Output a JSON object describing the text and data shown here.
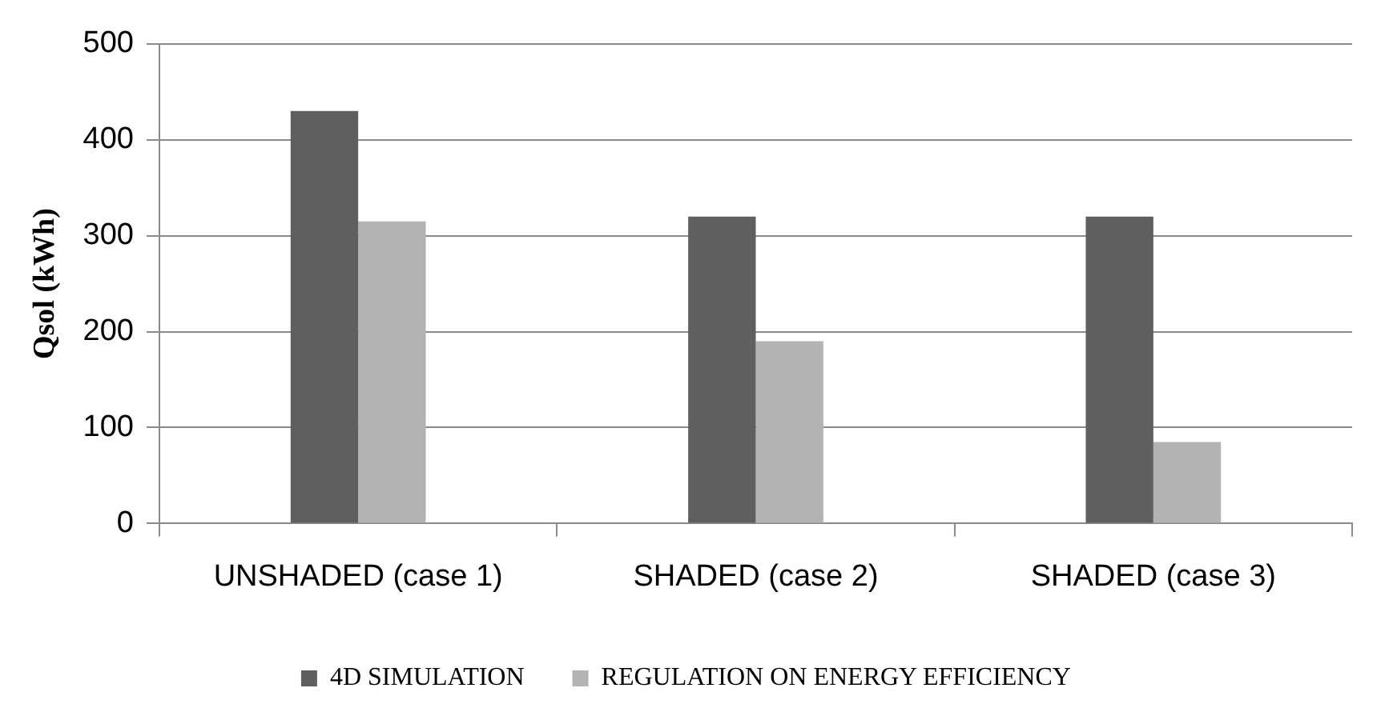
{
  "chart_data": {
    "type": "bar",
    "ylabel": "Qsol (kWh)",
    "categories": [
      "UNSHADED (case 1)",
      "SHADED (case 2)",
      "SHADED (case 3)"
    ],
    "series": [
      {
        "name": "4D SIMULATION",
        "color": "#5f5f5f",
        "values": [
          430,
          320,
          320
        ]
      },
      {
        "name": "REGULATION ON ENERGY EFFICIENCY",
        "color": "#b3b3b3",
        "values": [
          315,
          190,
          85
        ]
      }
    ],
    "ylim": [
      0,
      500
    ],
    "yticks": [
      0,
      100,
      200,
      300,
      400,
      500
    ],
    "grid": "y",
    "legend": "bottom"
  }
}
